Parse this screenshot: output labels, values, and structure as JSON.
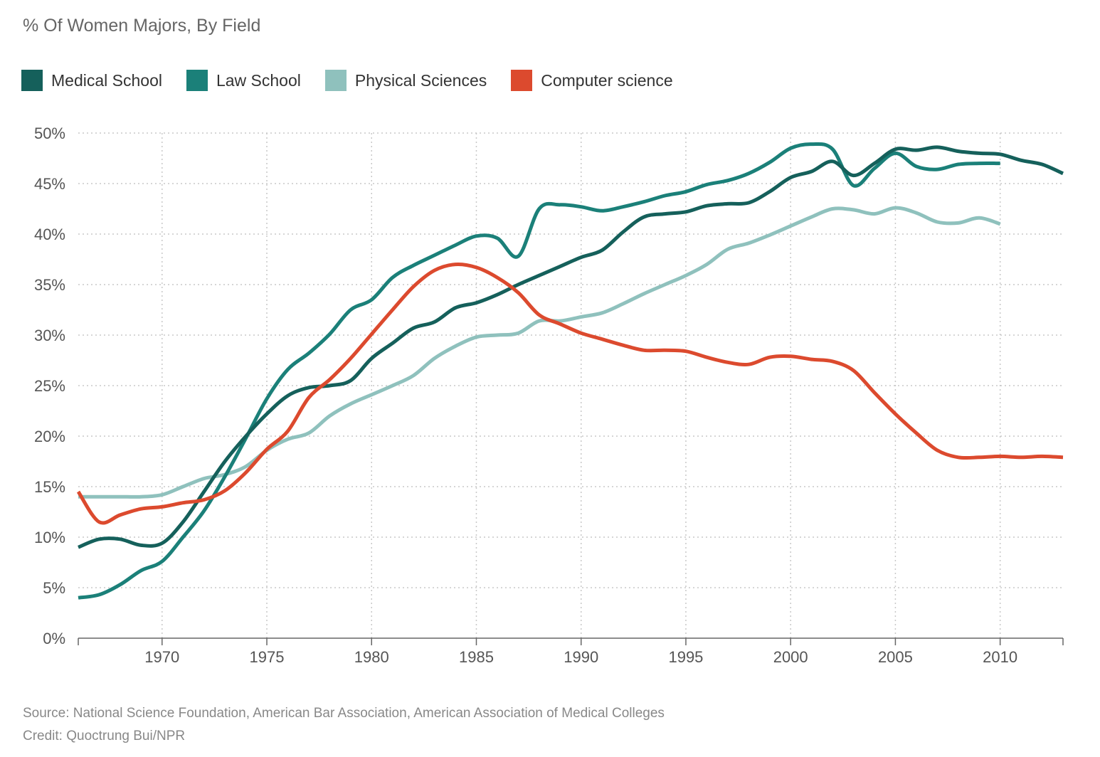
{
  "subtitle": "% Of Women Majors, By Field",
  "footer": {
    "source": "Source: National Science Foundation, American Bar Association, American Association of Medical Colleges",
    "credit": "Credit: Quoctrung Bui/NPR"
  },
  "chart_data": {
    "type": "line",
    "title": "",
    "subtitle": "% Of Women Majors, By Field",
    "xlabel": "",
    "ylabel": "",
    "xlim": [
      1966,
      2013
    ],
    "ylim": [
      0,
      50
    ],
    "x_ticks": [
      1970,
      1975,
      1980,
      1985,
      1990,
      1995,
      2000,
      2005,
      2010
    ],
    "x_tick_labels": [
      "1970",
      "1975",
      "1980",
      "1985",
      "1990",
      "1995",
      "2000",
      "2005",
      "2010"
    ],
    "y_ticks": [
      0,
      5,
      10,
      15,
      20,
      25,
      30,
      35,
      40,
      45,
      50
    ],
    "y_tick_labels": [
      "0%",
      "5%",
      "10%",
      "15%",
      "20%",
      "25%",
      "30%",
      "35%",
      "40%",
      "45%",
      "50%"
    ],
    "grid": true,
    "legend_position": "top-left",
    "series": [
      {
        "name": "Medical School",
        "color": "#15605b",
        "x": [
          1966,
          1967,
          1968,
          1969,
          1970,
          1971,
          1972,
          1973,
          1974,
          1975,
          1976,
          1977,
          1978,
          1979,
          1980,
          1981,
          1982,
          1983,
          1984,
          1985,
          1986,
          1987,
          1988,
          1989,
          1990,
          1991,
          1992,
          1993,
          1994,
          1995,
          1996,
          1997,
          1998,
          1999,
          2000,
          2001,
          2002,
          2003,
          2004,
          2005,
          2006,
          2007,
          2008,
          2009,
          2010,
          2011,
          2012,
          2013
        ],
        "values": [
          9.0,
          9.8,
          9.8,
          9.2,
          9.4,
          11.5,
          14.5,
          17.5,
          20.0,
          22.2,
          24.0,
          24.8,
          25.0,
          25.5,
          27.7,
          29.2,
          30.7,
          31.3,
          32.7,
          33.2,
          34.0,
          35.0,
          35.9,
          36.8,
          37.7,
          38.4,
          40.2,
          41.7,
          42.0,
          42.2,
          42.8,
          43.0,
          43.1,
          44.2,
          45.6,
          46.2,
          47.2,
          45.8,
          47.0,
          48.4,
          48.3,
          48.6,
          48.2,
          48.0,
          47.9,
          47.3,
          46.9,
          46.0
        ]
      },
      {
        "name": "Law School",
        "color": "#1b8079",
        "x": [
          1966,
          1967,
          1968,
          1969,
          1970,
          1971,
          1972,
          1973,
          1974,
          1975,
          1976,
          1977,
          1978,
          1979,
          1980,
          1981,
          1982,
          1983,
          1984,
          1985,
          1986,
          1987,
          1988,
          1989,
          1990,
          1991,
          1992,
          1993,
          1994,
          1995,
          1996,
          1997,
          1998,
          1999,
          2000,
          2001,
          2002,
          2003,
          2004,
          2005,
          2006,
          2007,
          2008,
          2009,
          2010
        ],
        "values": [
          4.0,
          4.3,
          5.3,
          6.7,
          7.6,
          10.0,
          12.6,
          16.0,
          19.8,
          23.7,
          26.6,
          28.2,
          30.1,
          32.5,
          33.5,
          35.7,
          36.9,
          37.9,
          38.9,
          39.8,
          39.6,
          37.8,
          42.5,
          42.9,
          42.7,
          42.3,
          42.7,
          43.2,
          43.8,
          44.2,
          44.9,
          45.3,
          46.0,
          47.1,
          48.5,
          48.9,
          48.4,
          44.8,
          46.5,
          48.0,
          46.7,
          46.4,
          46.9,
          47.0,
          47.0
        ]
      },
      {
        "name": "Physical Sciences",
        "color": "#8fc1bd",
        "x": [
          1966,
          1967,
          1968,
          1969,
          1970,
          1971,
          1972,
          1973,
          1974,
          1975,
          1976,
          1977,
          1978,
          1979,
          1980,
          1981,
          1982,
          1983,
          1984,
          1985,
          1986,
          1987,
          1988,
          1989,
          1990,
          1991,
          1992,
          1993,
          1994,
          1995,
          1996,
          1997,
          1998,
          1999,
          2000,
          2001,
          2002,
          2003,
          2004,
          2005,
          2006,
          2007,
          2008,
          2009,
          2010
        ],
        "values": [
          14.0,
          14.0,
          14.0,
          14.0,
          14.2,
          15.0,
          15.8,
          16.2,
          17.0,
          18.6,
          19.7,
          20.3,
          22.0,
          23.2,
          24.1,
          25.0,
          26.0,
          27.7,
          28.9,
          29.8,
          30.0,
          30.2,
          31.4,
          31.4,
          31.8,
          32.2,
          33.1,
          34.1,
          35.0,
          35.9,
          37.0,
          38.5,
          39.1,
          39.9,
          40.8,
          41.7,
          42.5,
          42.4,
          42.0,
          42.6,
          42.1,
          41.2,
          41.1,
          41.6,
          41.0
        ]
      },
      {
        "name": "Computer science",
        "color": "#dc4a2e",
        "x": [
          1966,
          1967,
          1968,
          1969,
          1970,
          1971,
          1972,
          1973,
          1974,
          1975,
          1976,
          1977,
          1978,
          1979,
          1980,
          1981,
          1982,
          1983,
          1984,
          1985,
          1986,
          1987,
          1988,
          1989,
          1990,
          1991,
          1992,
          1993,
          1994,
          1995,
          1996,
          1997,
          1998,
          1999,
          2000,
          2001,
          2002,
          2003,
          2004,
          2005,
          2006,
          2007,
          2008,
          2009,
          2010,
          2011,
          2012,
          2013
        ],
        "values": [
          14.5,
          11.5,
          12.2,
          12.8,
          13.0,
          13.4,
          13.7,
          14.6,
          16.4,
          18.7,
          20.5,
          23.8,
          25.6,
          27.7,
          30.1,
          32.5,
          34.8,
          36.4,
          37.0,
          36.7,
          35.7,
          34.2,
          32.0,
          31.1,
          30.2,
          29.6,
          29.0,
          28.5,
          28.5,
          28.4,
          27.8,
          27.3,
          27.1,
          27.8,
          27.9,
          27.6,
          27.4,
          26.5,
          24.3,
          22.2,
          20.3,
          18.6,
          17.9,
          17.9,
          18.0,
          17.9,
          18.0,
          17.9
        ]
      }
    ]
  }
}
